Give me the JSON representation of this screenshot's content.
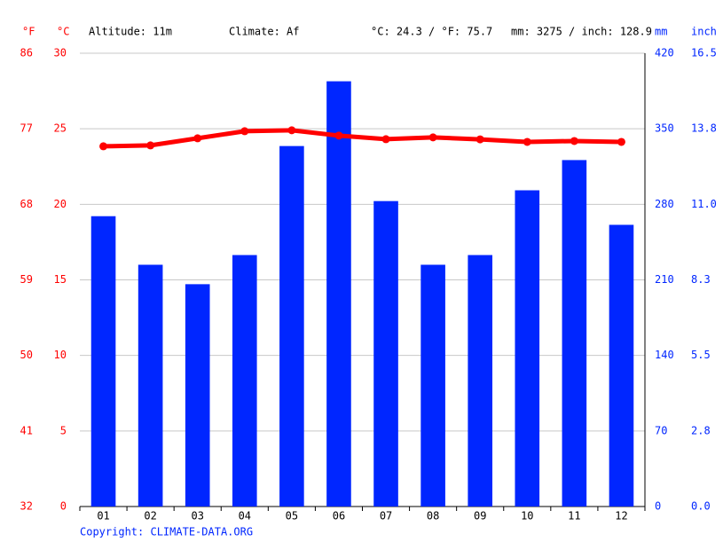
{
  "chart_data": {
    "type": "bar",
    "header": [
      "Altitude: 11m",
      "Climate: Af",
      "°C: 24.3 / °F: 75.7",
      "mm: 3275 / inch: 128.9"
    ],
    "copyright": "Copyright: CLIMATE-DATA.ORG",
    "categories": [
      "01",
      "02",
      "03",
      "04",
      "05",
      "06",
      "07",
      "08",
      "09",
      "10",
      "11",
      "12"
    ],
    "y_f_label": "°F",
    "y_f_lim": [
      32,
      86
    ],
    "y_f_ticks": [
      32,
      41,
      50,
      59,
      68,
      77,
      86
    ],
    "ylabel": "°C",
    "ylim": [
      0,
      30
    ],
    "yticks": [
      0,
      5,
      10,
      15,
      20,
      25,
      30
    ],
    "y2label": "mm",
    "y2lim": [
      0,
      420
    ],
    "y2ticks": [
      0,
      70,
      140,
      210,
      280,
      350,
      420
    ],
    "y3label": "inch",
    "y3lim": [
      0,
      16.535
    ],
    "y3ticks": [
      {
        "value": 0,
        "label": "0.0"
      },
      {
        "value": 2.756,
        "label": "2.8"
      },
      {
        "value": 5.512,
        "label": "5.5"
      },
      {
        "value": 8.268,
        "label": "8.3"
      },
      {
        "value": 11.024,
        "label": "11.0"
      },
      {
        "value": 13.78,
        "label": "13.8"
      },
      {
        "value": 16.535,
        "label": "16.5"
      }
    ],
    "grid": true,
    "series": [
      {
        "type": "bar",
        "axis": "y2",
        "color": "#0026ff",
        "values": [
          269,
          224,
          206,
          233,
          334,
          394,
          283,
          224,
          233,
          293,
          321,
          261
        ]
      },
      {
        "type": "line",
        "axis": "y",
        "color": "#ff0000",
        "values": [
          23.84,
          23.9,
          24.37,
          24.84,
          24.9,
          24.55,
          24.31,
          24.43,
          24.3,
          24.13,
          24.19,
          24.13
        ]
      }
    ]
  }
}
